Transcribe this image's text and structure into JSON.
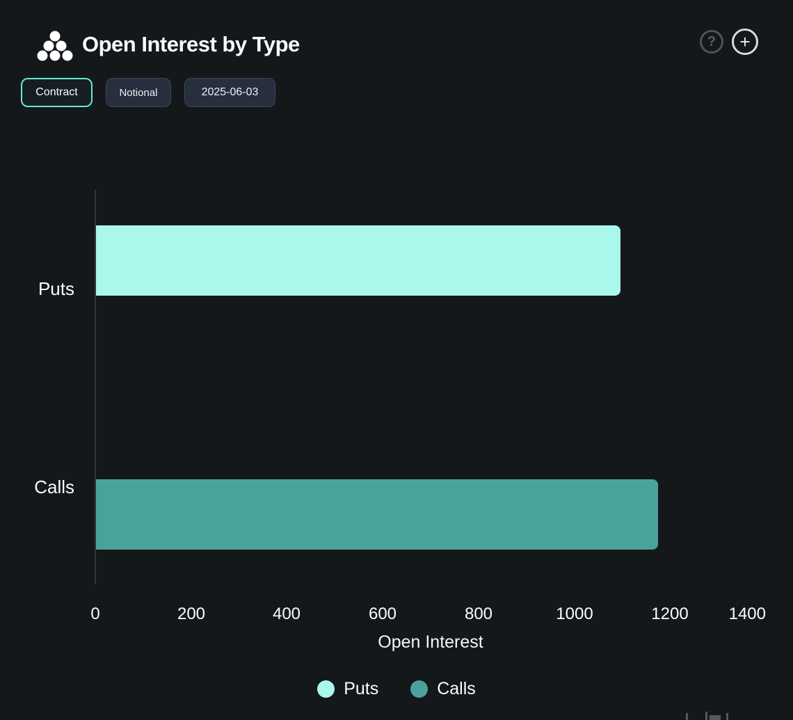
{
  "header": {
    "title": "Open Interest by Type",
    "help_label": "?",
    "add_label": "+"
  },
  "toolbar": {
    "buttons": [
      {
        "label": "Contract",
        "active": true
      },
      {
        "label": "Notional",
        "active": false
      },
      {
        "label": "2025-06-03",
        "active": false
      }
    ]
  },
  "colors": {
    "background": "#15181b",
    "accent_border": "#61ecd4",
    "puts": "#a9f8eb",
    "calls": "#4aa39b"
  },
  "chart_data": {
    "type": "bar",
    "orientation": "horizontal",
    "categories": [
      "Puts",
      "Calls"
    ],
    "series": [
      {
        "name": "Puts",
        "value": 1095,
        "color": "#a9f8eb"
      },
      {
        "name": "Calls",
        "value": 1174,
        "color": "#4aa39b"
      }
    ],
    "xlabel": "Open Interest",
    "xticks": [
      0,
      200,
      400,
      600,
      800,
      1000,
      1200,
      1400
    ],
    "xlim": [
      0,
      1400
    ],
    "grid": false,
    "legend_position": "bottom"
  }
}
